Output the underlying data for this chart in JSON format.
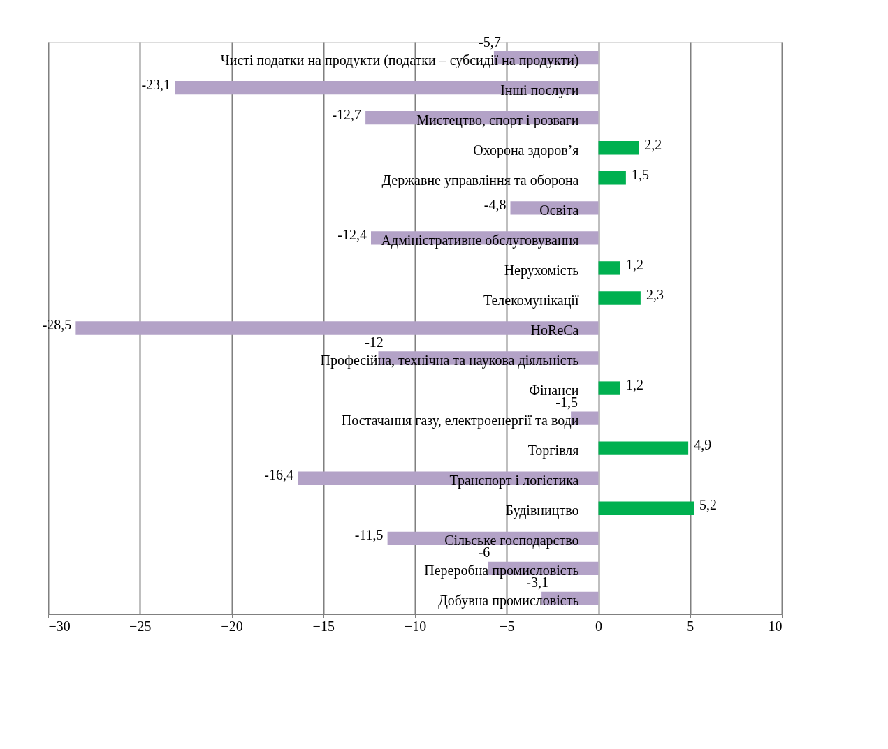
{
  "chart_data": {
    "type": "bar",
    "orientation": "horizontal",
    "categories": [
      "Чисті податки на продукти (податки – субсидії на продукти)",
      "Інші послуги",
      "Мистецтво, спорт і розваги",
      "Охорона здоров’я",
      "Державне управління та оборона",
      "Освіта",
      "Адміністративне обслуговування",
      "Нерухомість",
      "Телекомунікації",
      "HoReCa",
      "Професійна, технічна та наукова діяльність",
      "Фінанси",
      "Постачання газу, електроенергії та води",
      "Торгівля",
      "Транспорт і логістика",
      "Будівництво",
      "Сільське господарство",
      "Переробна промисловість",
      "Добувна промисловість"
    ],
    "values": [
      -5.7,
      -23.1,
      -12.7,
      2.2,
      1.5,
      -4.8,
      -12.4,
      1.2,
      2.3,
      -28.5,
      -12,
      1.2,
      -1.5,
      4.9,
      -16.4,
      5.2,
      -11.5,
      -6,
      -3.1
    ],
    "value_labels": [
      "-5,7",
      "-23,1",
      "-12,7",
      "2,2",
      "1,5",
      "-4,8",
      "-12,4",
      "1,2",
      "2,3",
      "-28,5",
      "-12",
      "1,2",
      "-1,5",
      "4,9",
      "-16,4",
      "5,2",
      "-11,5",
      "-6",
      "-3,1"
    ],
    "colors": [
      "#b3a2c7",
      "#b3a2c7",
      "#b3a2c7",
      "#00b050",
      "#00b050",
      "#b3a2c7",
      "#b3a2c7",
      "#00b050",
      "#00b050",
      "#b3a2c7",
      "#b3a2c7",
      "#00b050",
      "#b3a2c7",
      "#00b050",
      "#b3a2c7",
      "#00b050",
      "#b3a2c7",
      "#b3a2c7",
      "#b3a2c7"
    ],
    "xlim": [
      -30,
      10
    ],
    "xticks": [
      -30,
      -25,
      -20,
      -15,
      -10,
      -5,
      0,
      5,
      10
    ],
    "grid": "x"
  }
}
